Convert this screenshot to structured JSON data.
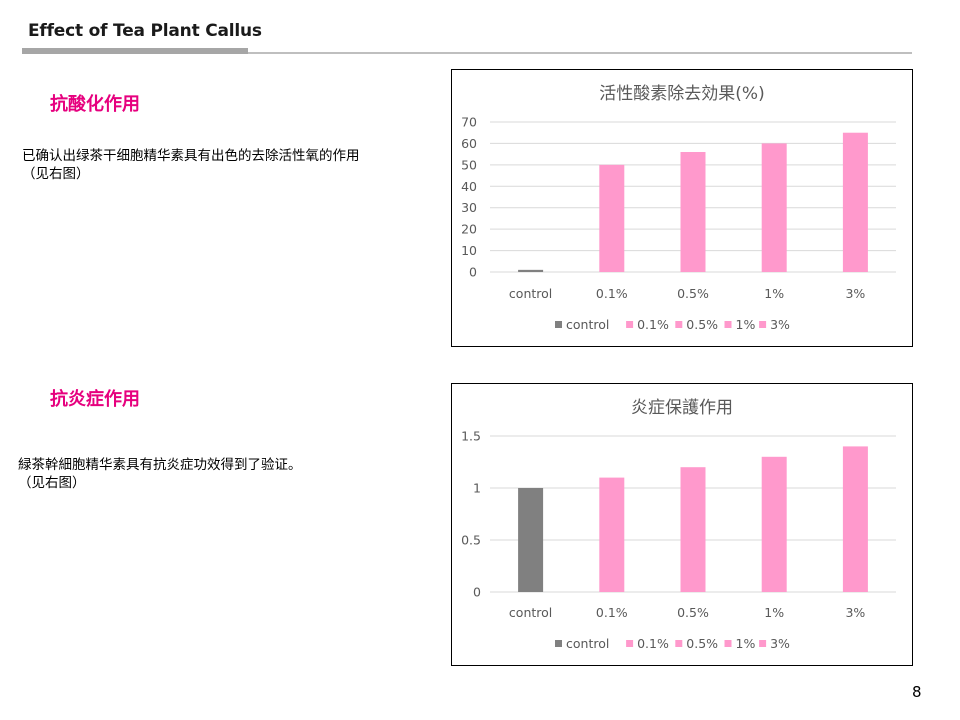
{
  "slide": {
    "title": "Effect of Tea Plant Callus",
    "page_number": "8"
  },
  "sections": [
    {
      "heading": "抗酸化作用",
      "text_lines": [
        "已确认出绿茶干细胞精华素具有出色的去除活性氧的作用",
        "（见右图）"
      ]
    },
    {
      "heading": "抗炎症作用",
      "text_lines": [
        "緑茶幹細胞精华素具有抗炎症功效得到了验证。",
        "（见右图）"
      ]
    }
  ],
  "chart_data": [
    {
      "type": "bar",
      "title": "活性酸素除去効果(%)",
      "categories": [
        "control",
        "0.1%",
        "0.5%",
        "1%",
        "3%"
      ],
      "values": [
        1,
        50,
        56,
        60,
        65
      ],
      "ylim": [
        0,
        70
      ],
      "yticks": [
        "0",
        "10",
        "20",
        "30",
        "40",
        "50",
        "60",
        "70"
      ],
      "grid": true,
      "legend": "bottom",
      "legend_entries": [
        "control",
        "0.1%",
        "0.5%",
        "1%",
        "3%"
      ],
      "colors": [
        "#808080",
        "#ff99cc",
        "#ff99cc",
        "#ff99cc",
        "#ff99cc"
      ]
    },
    {
      "type": "bar",
      "title": "炎症保護作用",
      "categories": [
        "control",
        "0.1%",
        "0.5%",
        "1%",
        "3%"
      ],
      "values": [
        1,
        1.1,
        1.2,
        1.3,
        1.4
      ],
      "ylim": [
        0,
        1.5
      ],
      "yticks": [
        "0",
        "0.5",
        "1",
        "1.5"
      ],
      "grid": true,
      "legend": "bottom",
      "legend_entries": [
        "control",
        "0.1%",
        "0.5%",
        "1%",
        "3%"
      ],
      "colors": [
        "#808080",
        "#ff99cc",
        "#ff99cc",
        "#ff99cc",
        "#ff99cc"
      ]
    }
  ]
}
